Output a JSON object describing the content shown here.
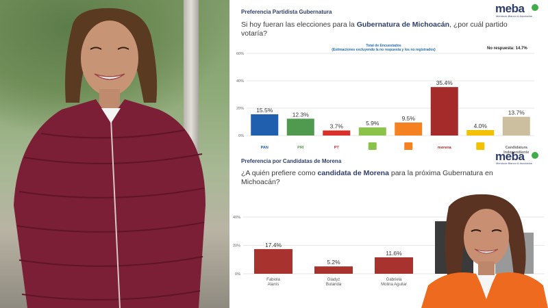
{
  "section1": {
    "title": "Preferencia Partidista Gubernatura",
    "question_pre": "Si hoy fueran las elecciones para la ",
    "question_bold": "Gubernatura de Michoacán",
    "question_post": ", ¿por cuál partido votaría?",
    "note_line1": "Total de Encuestados",
    "note_line2": "(Estimaciones excluyendo la no respuesta y los no registrados)",
    "no_response": "No respuesta: 14.7%"
  },
  "section2": {
    "title": "Preferencia por Candidatas de Morena",
    "question_pre": "¿A quién prefiere como ",
    "question_bold": "candidata de Morena",
    "question_post": " para la próxima Gubernatura en Michoacán?"
  },
  "brand": {
    "name": "meba",
    "subtitle": "Mendoza Blanco & Asociados"
  },
  "colors": {
    "navy": "#2f3f6b",
    "morena": "#a52a2a",
    "grid": "#e6e6e6"
  },
  "chart_data": [
    {
      "type": "bar",
      "categories": [
        "PAN",
        "PRI",
        "PT",
        "PVEM",
        "MC",
        "morena",
        "PES",
        "Candidatura Independiente"
      ],
      "values": [
        15.5,
        12.3,
        3.7,
        5.9,
        9.5,
        35.4,
        4.0,
        13.7
      ],
      "value_labels": [
        "15.5%",
        "12.3%",
        "3.7%",
        "5.9%",
        "9.5%",
        "35.4%",
        "4.0%",
        "13.7%"
      ],
      "colors": [
        "#1f5fae",
        "#4f9a4f",
        "#d9302a",
        "#8bc34a",
        "#f58220",
        "#a52a2a",
        "#f2c200",
        "#cbbf9f"
      ],
      "category_labels": [
        "PAN",
        "PRI",
        "PT",
        "",
        "",
        "morena",
        "",
        "Candidatura Independiente"
      ],
      "ylim": [
        0,
        60
      ],
      "yticks": [
        "0%",
        "20%",
        "40%",
        "60%"
      ],
      "grid": true
    },
    {
      "type": "bar",
      "categories": [
        "Fabiola Alanís",
        "Gladyz Butanda",
        "Gabriela Molina Aguilar",
        "",
        ""
      ],
      "values": [
        17.4,
        5.2,
        11.6,
        37.0,
        29.0
      ],
      "value_labels": [
        "17.4%",
        "5.2%",
        "11.6%",
        "37.",
        ""
      ],
      "colors": [
        "#a8332e",
        "#a8332e",
        "#a8332e",
        "#3a3a3a",
        "#999999"
      ],
      "ylim": [
        0,
        40
      ],
      "yticks": [
        "0%",
        "20%",
        "40%"
      ],
      "grid": true
    }
  ]
}
